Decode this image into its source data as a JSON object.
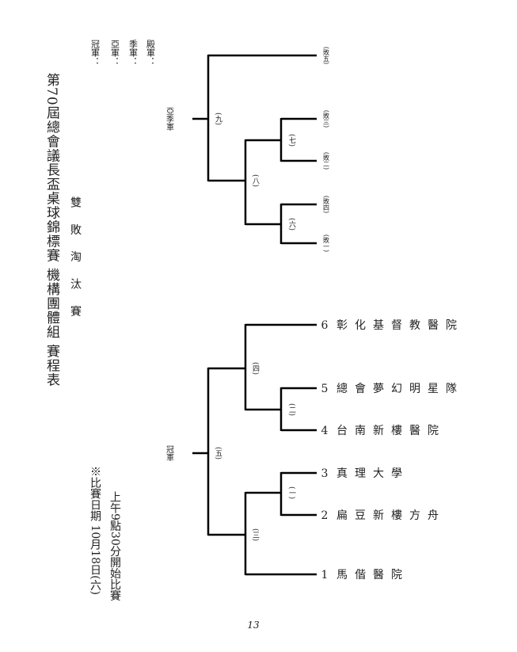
{
  "header": {
    "title": "第70屆總會議長盃桌球錦標賽 機構團體組 賽程表",
    "subtitle": "雙 敗 淘 汰 賽"
  },
  "results": [
    "冠軍：",
    "亞軍：",
    "季軍：",
    "殿軍："
  ],
  "notes": [
    "※比賽日期 10月18日(六)",
    "上午9點30分開始比賽"
  ],
  "teams": [
    {
      "number": "1",
      "name": "馬偕醫院"
    },
    {
      "number": "2",
      "name": "扁豆新樓方舟"
    },
    {
      "number": "3",
      "name": "真理大學"
    },
    {
      "number": "4",
      "name": "台南新樓醫院"
    },
    {
      "number": "5",
      "name": "總會夢幻明星隊"
    },
    {
      "number": "6",
      "name": "彰化基督教醫院"
    }
  ],
  "matches": [
    "(一)",
    "(二)",
    "(三)",
    "(四)",
    "(五)",
    "(六)",
    "(七)",
    "(八)",
    "(九)"
  ],
  "loser_slots": [
    "(敗一)",
    "(敗四)",
    "(敗二)",
    "(敗三)",
    "(敗五)"
  ],
  "finals": {
    "champion": "冠軍",
    "runner_up": "亞季軍"
  },
  "page_number": "13"
}
